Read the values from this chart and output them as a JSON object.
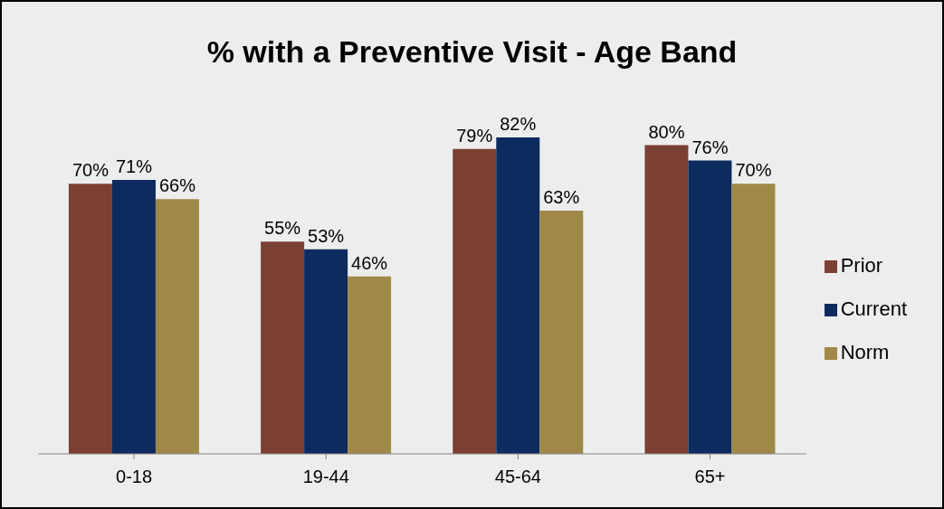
{
  "chart_data": {
    "type": "bar",
    "title": "% with a Preventive Visit - Age Band",
    "categories": [
      "0-18",
      "19-44",
      "45-64",
      "65+"
    ],
    "series": [
      {
        "name": "Prior",
        "color": "#7b3f33",
        "values": [
          70,
          55,
          79,
          80
        ],
        "value_labels": [
          "70%",
          "55%",
          "79%",
          "80%"
        ]
      },
      {
        "name": "Current",
        "color": "#0d2b5e",
        "values": [
          71,
          53,
          82,
          76
        ],
        "value_labels": [
          "71%",
          "53%",
          "82%",
          "76%"
        ]
      },
      {
        "name": "Norm",
        "color": "#a08848",
        "values": [
          66,
          46,
          63,
          70
        ],
        "value_labels": [
          "66%",
          "46%",
          "63%",
          "70%"
        ]
      }
    ],
    "legend": "right",
    "grid": false
  }
}
